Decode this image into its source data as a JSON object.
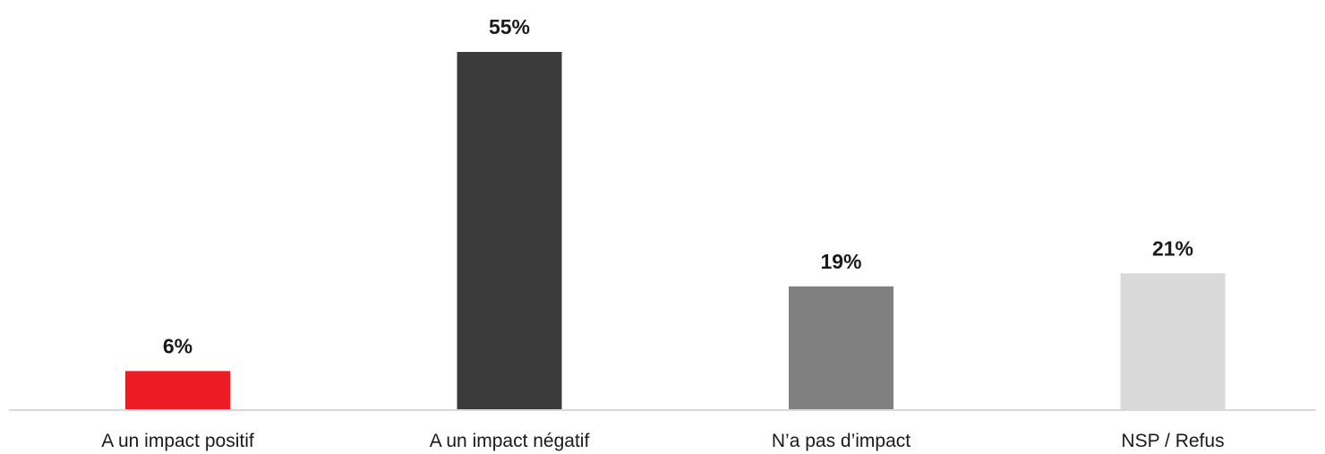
{
  "chart_data": {
    "type": "bar",
    "categories": [
      "A un impact positif",
      "A un impact négatif",
      "N’a pas d’impact",
      "NSP / Refus"
    ],
    "values": [
      6,
      55,
      19,
      21
    ],
    "data_labels": [
      "6%",
      "55%",
      "19%",
      "21%"
    ],
    "colors": [
      "#ed1c24",
      "#3b3b3b",
      "#808080",
      "#d9d9d9"
    ],
    "unit": "%",
    "ylim": [
      0,
      55
    ],
    "grid": false,
    "legend": "none",
    "title": "",
    "xlabel": "",
    "ylabel": ""
  },
  "colors": {
    "baseline": "#d9d9d9",
    "text": "#1a1a1a"
  }
}
